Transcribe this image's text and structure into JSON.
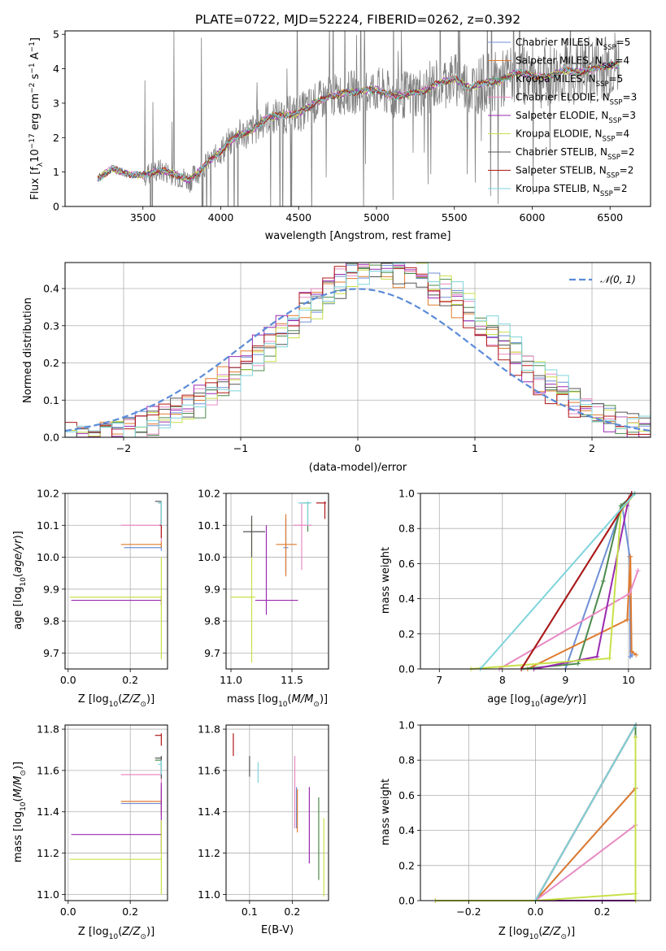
{
  "chart_data": [
    {
      "id": "spectrum",
      "type": "line",
      "title": "PLATE=0722, MJD=52224, FIBERID=0262, z=0.392",
      "xlabel": "wavelength [Angstrom, rest frame]",
      "ylabel": "Flux [f_λ 10^-17 erg cm^-2 s^-1 A^-1]",
      "xlim": [
        3000,
        6760
      ],
      "ylim": [
        0,
        5.1
      ],
      "xticks": [
        3500,
        4000,
        4500,
        5000,
        5500,
        6000,
        6500
      ],
      "yticks": [
        0,
        1,
        2,
        3,
        4,
        5
      ],
      "grid": false,
      "legend_position": "upper right",
      "data_x_range": [
        3210,
        6560
      ],
      "anchors": {
        "x": [
          3210,
          3300,
          3400,
          3500,
          3600,
          3700,
          3800,
          3900,
          4000,
          4100,
          4200,
          4300,
          4400,
          4500,
          4600,
          4700,
          4800,
          4900,
          5000,
          5100,
          5200,
          5300,
          5400,
          5500,
          5600,
          5700,
          5800,
          5900,
          6000,
          6100,
          6200,
          6300,
          6400,
          6500,
          6560
        ],
        "y": [
          0.8,
          1.1,
          0.95,
          0.9,
          1.05,
          0.95,
          0.75,
          1.2,
          1.6,
          2.05,
          2.2,
          2.6,
          2.65,
          2.7,
          3.0,
          3.2,
          3.3,
          3.35,
          3.4,
          3.2,
          3.25,
          3.35,
          3.6,
          3.7,
          3.45,
          3.6,
          3.65,
          3.9,
          3.8,
          3.75,
          3.95,
          3.9,
          4.0,
          4.1,
          4.1
        ]
      },
      "series": [
        {
          "name": "Chabrier MILES, N_SSP=5",
          "color": "#6f8fd6"
        },
        {
          "name": "Salpeter MILES, N_SSP=4",
          "color": "#e07b2e"
        },
        {
          "name": "Kroupa MILES, N_SSP=5",
          "color": "#4c8a4c"
        },
        {
          "name": "Chabrier ELODIE, N_SSP=3",
          "color": "#e88ac4"
        },
        {
          "name": "Salpeter ELODIE, N_SSP=3",
          "color": "#9a2ab0"
        },
        {
          "name": "Kroupa ELODIE, N_SSP=4",
          "color": "#c8e04a"
        },
        {
          "name": "Chabrier STELIB, N_SSP=2",
          "color": "#555555"
        },
        {
          "name": "Salpeter STELIB, N_SSP=2",
          "color": "#b01818"
        },
        {
          "name": "Kroupa STELIB, N_SSP=2",
          "color": "#7fd4dc"
        }
      ],
      "data_color": "#808080"
    },
    {
      "id": "residuals",
      "type": "step-histogram",
      "xlabel": "(data-model)/error",
      "ylabel": "Normed distribution",
      "xlim": [
        -2.5,
        2.5
      ],
      "ylim": [
        0,
        0.47
      ],
      "xticks": [
        -2,
        -1,
        0,
        1,
        2
      ],
      "yticks": [
        0.0,
        0.1,
        0.2,
        0.3,
        0.4
      ],
      "grid": true,
      "bin_width": 0.1,
      "legend": "𝒩(0, 1)",
      "legend_position": "upper right",
      "normal_color": "#5b8bd8",
      "hist_colors": [
        "#6f8fd6",
        "#e07b2e",
        "#4c8a4c",
        "#e88ac4",
        "#9a2ab0",
        "#c8e04a",
        "#555555",
        "#b01818",
        "#7fd4dc"
      ]
    },
    {
      "id": "age_vs_Z",
      "type": "errorbar",
      "xlabel": "Z [log10(Z/Z_sun)]",
      "ylabel": "age [log10(age/yr)]",
      "xlim": [
        -0.01,
        0.32
      ],
      "ylim": [
        9.65,
        10.2
      ],
      "xticks": [
        0.0,
        0.2
      ],
      "yticks": [
        9.7,
        9.8,
        9.9,
        10.0,
        10.1,
        10.2
      ],
      "grid": true,
      "points": [
        {
          "x": 0.3,
          "xlo": 0.18,
          "xhi": 0.3,
          "y": 10.03,
          "ylo": 10.02,
          "yhi": 10.04,
          "color": "#6f8fd6"
        },
        {
          "x": 0.3,
          "xlo": 0.17,
          "xhi": 0.3,
          "y": 10.04,
          "ylo": 10.03,
          "yhi": 10.05,
          "color": "#e07b2e"
        },
        {
          "x": 0.3,
          "xlo": 0.29,
          "xhi": 0.3,
          "y": 10.17,
          "ylo": 10.1,
          "yhi": 10.175,
          "color": "#4c8a4c"
        },
        {
          "x": 0.3,
          "xlo": 0.17,
          "xhi": 0.3,
          "y": 10.1,
          "ylo": 10.05,
          "yhi": 10.12,
          "color": "#e88ac4"
        },
        {
          "x": 0.3,
          "xlo": 0.01,
          "xhi": 0.3,
          "y": 9.865,
          "ylo": 9.85,
          "yhi": 9.88,
          "color": "#9a2ab0"
        },
        {
          "x": 0.3,
          "xlo": 0.005,
          "xhi": 0.3,
          "y": 9.875,
          "ylo": 9.68,
          "yhi": 10.0,
          "color": "#c8e04a"
        },
        {
          "x": 0.3,
          "xlo": 0.28,
          "xhi": 0.3,
          "y": 10.175,
          "ylo": 10.1,
          "yhi": 10.175,
          "color": "#555555"
        },
        {
          "x": 0.3,
          "xlo": 0.295,
          "xhi": 0.3,
          "y": 10.1,
          "ylo": 10.06,
          "yhi": 10.12,
          "color": "#b01818"
        },
        {
          "x": 0.3,
          "xlo": 0.29,
          "xhi": 0.3,
          "y": 10.17,
          "ylo": 10.1,
          "yhi": 10.175,
          "color": "#7fd4dc"
        }
      ]
    },
    {
      "id": "age_vs_mass",
      "type": "errorbar",
      "xlabel": "mass [log10(M/M_sun)]",
      "ylabel": "",
      "xlim": [
        10.96,
        11.8
      ],
      "ylim": [
        9.65,
        10.2
      ],
      "xticks": [
        11.0,
        11.5
      ],
      "yticks": [
        9.7,
        9.8,
        9.9,
        10.0,
        10.1,
        10.2
      ],
      "grid": true,
      "points": [
        {
          "x": 11.45,
          "xlo": 11.43,
          "xhi": 11.47,
          "y": 10.03,
          "ylo": 9.95,
          "yhi": 10.12,
          "color": "#6f8fd6"
        },
        {
          "x": 11.45,
          "xlo": 11.37,
          "xhi": 11.54,
          "y": 10.04,
          "ylo": 9.94,
          "yhi": 10.135,
          "color": "#e07b2e"
        },
        {
          "x": 11.63,
          "xlo": 11.59,
          "xhi": 11.65,
          "y": 10.17,
          "ylo": 10.08,
          "yhi": 10.175,
          "color": "#4c8a4c"
        },
        {
          "x": 11.58,
          "xlo": 11.51,
          "xhi": 11.66,
          "y": 10.1,
          "ylo": 9.96,
          "yhi": 10.17,
          "color": "#e88ac4"
        },
        {
          "x": 11.29,
          "xlo": 11.2,
          "xhi": 11.55,
          "y": 9.865,
          "ylo": 9.82,
          "yhi": 10.1,
          "color": "#9a2ab0"
        },
        {
          "x": 11.17,
          "xlo": 11.0,
          "xhi": 11.2,
          "y": 9.875,
          "ylo": 9.67,
          "yhi": 10.12,
          "color": "#c8e04a"
        },
        {
          "x": 11.17,
          "xlo": 11.1,
          "xhi": 11.28,
          "y": 10.08,
          "ylo": 10.0,
          "yhi": 10.13,
          "color": "#555555"
        },
        {
          "x": 11.77,
          "xlo": 11.7,
          "xhi": 11.78,
          "y": 10.17,
          "ylo": 10.12,
          "yhi": 10.175,
          "color": "#b01818"
        },
        {
          "x": 11.63,
          "xlo": 11.55,
          "xhi": 11.66,
          "y": 10.17,
          "ylo": 10.1,
          "yhi": 10.175,
          "color": "#7fd4dc"
        }
      ]
    },
    {
      "id": "massweight_vs_age",
      "type": "line",
      "xlabel": "age [log10(age/yr)]",
      "ylabel": "mass weight",
      "xlim": [
        6.7,
        10.35
      ],
      "ylim": [
        0,
        1
      ],
      "xticks": [
        7,
        8,
        9,
        10
      ],
      "yticks": [
        0.0,
        0.2,
        0.4,
        0.6,
        0.8,
        1.0
      ],
      "grid": true,
      "series": [
        {
          "name": "Chabrier MILES",
          "color": "#6f8fd6",
          "x": [
            9.0,
            9.9,
            10.02,
            10.03,
            10.06
          ],
          "y": [
            0.0,
            0.93,
            0.64,
            0.07,
            0.08
          ]
        },
        {
          "name": "Salpeter MILES",
          "color": "#e07b2e",
          "x": [
            8.4,
            9.98,
            10.03,
            10.05,
            10.12
          ],
          "y": [
            0.0,
            0.28,
            0.64,
            0.1,
            0.08
          ]
        },
        {
          "name": "Kroupa MILES",
          "color": "#4c8a4c",
          "x": [
            8.3,
            9.2,
            9.6,
            9.88,
            10.1
          ],
          "y": [
            0.0,
            0.03,
            0.5,
            0.93,
            1.0
          ]
        },
        {
          "name": "Chabrier ELODIE",
          "color": "#e88ac4",
          "x": [
            7.95,
            10.02,
            10.15
          ],
          "y": [
            0.0,
            0.43,
            0.56
          ]
        },
        {
          "name": "Salpeter ELODIE",
          "color": "#9a2ab0",
          "x": [
            8.5,
            9.5,
            9.98,
            10.05
          ],
          "y": [
            0.0,
            0.07,
            0.93,
            1.0
          ]
        },
        {
          "name": "Kroupa ELODIE",
          "color": "#c8e04a",
          "x": [
            7.5,
            9.7,
            9.88,
            10.1
          ],
          "y": [
            0.0,
            0.06,
            0.9,
            1.0
          ]
        },
        {
          "name": "Chabrier STELIB",
          "color": "#555555",
          "x": [
            8.3,
            10.05
          ],
          "y": [
            0.0,
            1.0
          ]
        },
        {
          "name": "Salpeter STELIB",
          "color": "#b01818",
          "x": [
            8.3,
            10.05
          ],
          "y": [
            0.0,
            1.0
          ]
        },
        {
          "name": "Kroupa STELIB",
          "color": "#7fd4dc",
          "x": [
            7.65,
            10.1
          ],
          "y": [
            0.0,
            1.0
          ]
        }
      ]
    },
    {
      "id": "mass_vs_Z",
      "type": "errorbar",
      "xlabel": "Z [log10(Z/Z_sun)]",
      "ylabel": "mass [log10(M/M_sun)]",
      "xlim": [
        -0.01,
        0.32
      ],
      "ylim": [
        10.97,
        11.82
      ],
      "xticks": [
        0.0,
        0.2
      ],
      "yticks": [
        11.0,
        11.2,
        11.4,
        11.6,
        11.8
      ],
      "grid": true,
      "points": [
        {
          "x": 0.3,
          "xlo": 0.17,
          "xhi": 0.3,
          "y": 11.44,
          "ylo": 11.4,
          "yhi": 11.5,
          "color": "#6f8fd6"
        },
        {
          "x": 0.3,
          "xlo": 0.17,
          "xhi": 0.3,
          "y": 11.45,
          "ylo": 11.38,
          "yhi": 11.52,
          "color": "#e07b2e"
        },
        {
          "x": 0.3,
          "xlo": 0.28,
          "xhi": 0.3,
          "y": 11.65,
          "ylo": 11.6,
          "yhi": 11.67,
          "color": "#4c8a4c"
        },
        {
          "x": 0.3,
          "xlo": 0.17,
          "xhi": 0.3,
          "y": 11.58,
          "ylo": 11.5,
          "yhi": 11.62,
          "color": "#e88ac4"
        },
        {
          "x": 0.3,
          "xlo": 0.01,
          "xhi": 0.3,
          "y": 11.29,
          "ylo": 11.2,
          "yhi": 11.54,
          "color": "#9a2ab0"
        },
        {
          "x": 0.3,
          "xlo": 0.005,
          "xhi": 0.3,
          "y": 11.17,
          "ylo": 11.0,
          "yhi": 11.36,
          "color": "#c8e04a"
        },
        {
          "x": 0.3,
          "xlo": 0.28,
          "xhi": 0.3,
          "y": 11.66,
          "ylo": 11.56,
          "yhi": 11.67,
          "color": "#555555"
        },
        {
          "x": 0.3,
          "xlo": 0.28,
          "xhi": 0.3,
          "y": 11.77,
          "ylo": 11.72,
          "yhi": 11.78,
          "color": "#b01818"
        },
        {
          "x": 0.3,
          "xlo": 0.29,
          "xhi": 0.3,
          "y": 11.63,
          "ylo": 11.58,
          "yhi": 11.65,
          "color": "#7fd4dc"
        }
      ]
    },
    {
      "id": "mass_vs_ebv",
      "type": "errorbar",
      "xlabel": "E(B-V)",
      "ylabel": "",
      "xlim": [
        0.045,
        0.285
      ],
      "ylim": [
        10.97,
        11.82
      ],
      "xticks": [
        0.1,
        0.2
      ],
      "yticks": [
        11.0,
        11.2,
        11.4,
        11.6,
        11.8
      ],
      "grid": true,
      "points": [
        {
          "x": 0.21,
          "y": 11.44,
          "ylo": 11.32,
          "yhi": 11.52,
          "color": "#6f8fd6"
        },
        {
          "x": 0.212,
          "y": 11.45,
          "ylo": 11.3,
          "yhi": 11.51,
          "color": "#e07b2e"
        },
        {
          "x": 0.262,
          "y": 11.27,
          "ylo": 11.07,
          "yhi": 11.47,
          "color": "#4c8a4c"
        },
        {
          "x": 0.206,
          "y": 11.58,
          "ylo": 11.32,
          "yhi": 11.67,
          "color": "#e88ac4"
        },
        {
          "x": 0.24,
          "y": 11.29,
          "ylo": 11.15,
          "yhi": 11.52,
          "color": "#9a2ab0"
        },
        {
          "x": 0.274,
          "y": 11.17,
          "ylo": 10.99,
          "yhi": 11.37,
          "color": "#c8e04a"
        },
        {
          "x": 0.1,
          "y": 11.62,
          "ylo": 11.57,
          "yhi": 11.67,
          "color": "#555555"
        },
        {
          "x": 0.062,
          "y": 11.74,
          "ylo": 11.67,
          "yhi": 11.78,
          "color": "#b01818"
        },
        {
          "x": 0.12,
          "y": 11.59,
          "ylo": 11.54,
          "yhi": 11.64,
          "color": "#7fd4dc"
        }
      ]
    },
    {
      "id": "massweight_vs_Z",
      "type": "line",
      "xlabel": "Z [log10(Z/Z_sun)]",
      "ylabel": "mass weight",
      "xlim": [
        -0.345,
        0.345
      ],
      "ylim": [
        0,
        1
      ],
      "xticks": [
        -0.2,
        0.0,
        0.2
      ],
      "yticks": [
        0.0,
        0.2,
        0.4,
        0.6,
        0.8,
        1.0
      ],
      "grid": true,
      "series": [
        {
          "name": "Chabrier MILES",
          "color": "#6f8fd6",
          "x": [
            -0.3,
            0.0,
            0.3,
            0.3
          ],
          "y": [
            0.0,
            0.0,
            0.64,
            0.0
          ]
        },
        {
          "name": "Salpeter MILES",
          "color": "#e07b2e",
          "x": [
            -0.3,
            0.0,
            0.3,
            0.3
          ],
          "y": [
            0.0,
            0.0,
            0.64,
            0.0
          ]
        },
        {
          "name": "Kroupa MILES",
          "color": "#4c8a4c",
          "x": [
            0.0,
            0.3,
            0.3
          ],
          "y": [
            0.0,
            1.0,
            0.0
          ]
        },
        {
          "name": "Chabrier ELODIE",
          "color": "#e88ac4",
          "x": [
            -0.3,
            0.0,
            0.3
          ],
          "y": [
            0.0,
            0.0,
            0.43
          ]
        },
        {
          "name": "Salpeter ELODIE",
          "color": "#9a2ab0",
          "x": [
            -0.3,
            0.3
          ],
          "y": [
            0.0,
            0.0
          ]
        },
        {
          "name": "Kroupa ELODIE",
          "color": "#c8e04a",
          "x": [
            -0.3,
            0.0,
            0.3,
            0.3,
            0.3
          ],
          "y": [
            0.0,
            0.0,
            0.04,
            0.0,
            0.93
          ]
        },
        {
          "name": "Chabrier STELIB",
          "color": "#555555",
          "x": [
            0.0,
            0.3
          ],
          "y": [
            0.0,
            1.0
          ]
        },
        {
          "name": "Salpeter STELIB",
          "color": "#b01818",
          "x": [
            0.0,
            0.3
          ],
          "y": [
            0.0,
            1.0
          ]
        },
        {
          "name": "Kroupa STELIB",
          "color": "#7fd4dc",
          "x": [
            0.0,
            0.3
          ],
          "y": [
            0.0,
            1.0
          ]
        }
      ]
    }
  ]
}
